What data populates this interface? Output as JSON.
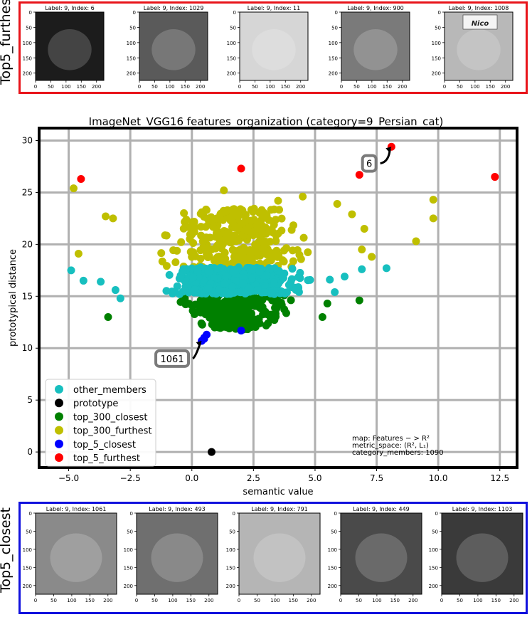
{
  "top_panel": {
    "side_label": "Top5_furthest",
    "thumbs": [
      {
        "title": "Label: 9, Index: 6"
      },
      {
        "title": "Label: 9, Index: 1029"
      },
      {
        "title": "Label: 9, Index: 11"
      },
      {
        "title": "Label: 9, Index: 900"
      },
      {
        "title": "Label: 9, Index: 1008"
      }
    ],
    "y_ticks": [
      "0",
      "50",
      "100",
      "150",
      "200"
    ],
    "x_ticks": [
      "0",
      "50",
      "100",
      "150",
      "200"
    ],
    "image_tones": [
      "#1c1c1c",
      "#5a5a5a",
      "#d6d6d6",
      "#7a7a7a",
      "#b8b8b8"
    ],
    "logo_text": "Nico"
  },
  "bottom_panel": {
    "side_label": "Top5_closest",
    "thumbs": [
      {
        "title": "Label: 9, Index: 1061"
      },
      {
        "title": "Label: 9, Index: 493"
      },
      {
        "title": "Label: 9, Index: 791"
      },
      {
        "title": "Label: 9, Index: 449"
      },
      {
        "title": "Label: 9, Index: 1103"
      }
    ],
    "y_ticks": [
      "0",
      "50",
      "100",
      "150",
      "200"
    ],
    "x_ticks": [
      "0",
      "50",
      "100",
      "150",
      "200"
    ],
    "image_tones": [
      "#8a8a8a",
      "#6f6f6f",
      "#b5b5b5",
      "#4a4a4a",
      "#3a3a3a"
    ]
  },
  "chart_data": {
    "type": "scatter",
    "title": "ImageNet_VGG16 features_organization (category=9_Persian_cat)",
    "xlabel": "semantic value",
    "ylabel": "prototypical distance",
    "xlim": [
      -6.2,
      13.2
    ],
    "ylim": [
      -1.5,
      31.2
    ],
    "x_ticks": [
      -5.0,
      -2.5,
      0.0,
      2.5,
      5.0,
      7.5,
      10.0,
      12.5
    ],
    "x_tick_labels": [
      "−5.0",
      "−2.5",
      "0.0",
      "2.5",
      "5.0",
      "7.5",
      "10.0",
      "12.5"
    ],
    "y_ticks": [
      0,
      5,
      10,
      15,
      20,
      25,
      30
    ],
    "y_tick_labels": [
      "0",
      "5",
      "10",
      "15",
      "20",
      "25",
      "30"
    ],
    "grid": true,
    "legend_position": "lower-left",
    "colors": {
      "other_members": "#17bfbf",
      "prototype": "#000000",
      "top_300_closest": "#008000",
      "top_300_furthest": "#bfbf00",
      "top_5_closest": "#0000ff",
      "top_5_furthest": "#ff0000"
    },
    "series": [
      {
        "name": "other_members",
        "color": "#17bfbf",
        "cloud": {
          "x_center": 1.6,
          "x_spread": 3.2,
          "y_min": 15.2,
          "y_max": 17.8,
          "n": 420
        },
        "points": [
          [
            -4.9,
            17.5
          ],
          [
            -4.4,
            16.5
          ],
          [
            -3.7,
            16.4
          ],
          [
            -3.1,
            15.6
          ],
          [
            6.2,
            16.9
          ],
          [
            6.9,
            17.6
          ],
          [
            7.9,
            17.7
          ],
          [
            5.8,
            15.4
          ],
          [
            5.6,
            16.6
          ],
          [
            -2.9,
            14.8
          ]
        ]
      },
      {
        "name": "prototype",
        "color": "#000000",
        "points": [
          [
            0.8,
            0.0
          ]
        ]
      },
      {
        "name": "top_300_closest",
        "color": "#008000",
        "cloud": {
          "x_center": 1.8,
          "x_spread": 2.7,
          "y_min": 11.8,
          "y_max": 15.2,
          "n": 300
        },
        "points": [
          [
            -3.4,
            13.0
          ],
          [
            5.3,
            13.0
          ],
          [
            6.8,
            14.6
          ],
          [
            5.5,
            14.3
          ]
        ]
      },
      {
        "name": "top_300_furthest",
        "color": "#bfbf00",
        "cloud": {
          "x_center": 1.8,
          "x_spread": 3.6,
          "y_min": 17.8,
          "y_max": 23.5,
          "n": 300
        },
        "points": [
          [
            -4.8,
            25.4
          ],
          [
            -4.6,
            19.1
          ],
          [
            -3.5,
            22.7
          ],
          [
            -3.2,
            22.5
          ],
          [
            1.3,
            25.2
          ],
          [
            4.5,
            24.6
          ],
          [
            5.9,
            23.9
          ],
          [
            6.5,
            22.9
          ],
          [
            7.0,
            21.5
          ],
          [
            6.9,
            19.5
          ],
          [
            9.8,
            24.3
          ],
          [
            9.8,
            22.5
          ],
          [
            9.1,
            20.3
          ],
          [
            7.3,
            18.8
          ],
          [
            3.5,
            24.2
          ]
        ]
      },
      {
        "name": "top_5_closest",
        "color": "#0000ff",
        "points": [
          [
            0.4,
            10.7
          ],
          [
            0.5,
            11.0
          ],
          [
            0.6,
            11.3
          ],
          [
            0.5,
            10.9
          ],
          [
            2.0,
            11.7
          ]
        ]
      },
      {
        "name": "top_5_furthest",
        "color": "#ff0000",
        "points": [
          [
            8.1,
            29.4
          ],
          [
            -4.5,
            26.3
          ],
          [
            2.0,
            27.3
          ],
          [
            6.8,
            26.7
          ],
          [
            12.3,
            26.5
          ]
        ]
      }
    ],
    "annotations": [
      {
        "text": "6",
        "point": [
          8.1,
          29.4
        ],
        "label_at": [
          7.2,
          27.8
        ]
      },
      {
        "text": "1061",
        "point": [
          0.4,
          10.7
        ],
        "label_at": [
          -0.8,
          9.0
        ]
      }
    ],
    "info_lines": [
      "map: Features − > R²",
      "metric_space: (R², L₁)",
      "category_members: 1090"
    ]
  }
}
